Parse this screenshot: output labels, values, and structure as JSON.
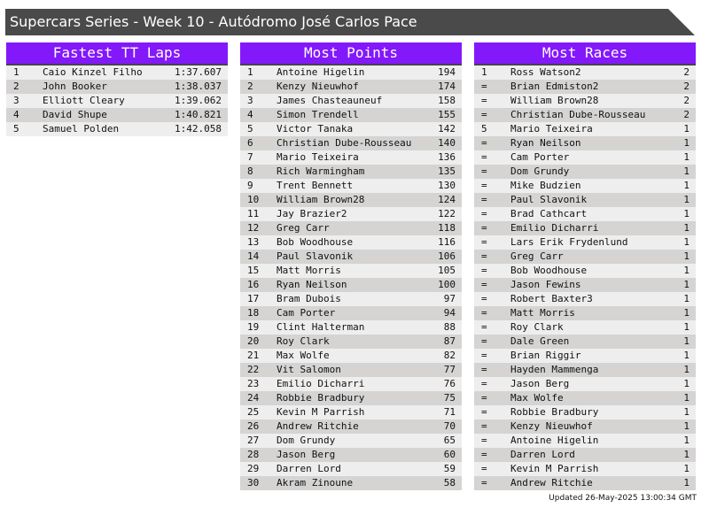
{
  "title": "Supercars Series - Week 10 - Autódromo José Carlos Pace",
  "panels": [
    {
      "heading": "Fastest TT Laps",
      "rows": [
        [
          "1",
          "Caio Kinzel Filho",
          "1:37.607"
        ],
        [
          "2",
          "John Booker",
          "1:38.037"
        ],
        [
          "3",
          "Elliott Cleary",
          "1:39.062"
        ],
        [
          "4",
          "David Shupe",
          "1:40.821"
        ],
        [
          "5",
          "Samuel Polden",
          "1:42.058"
        ]
      ]
    },
    {
      "heading": "Most Points",
      "rows": [
        [
          "1",
          "Antoine Higelin",
          "194"
        ],
        [
          "2",
          "Kenzy Nieuwhof",
          "174"
        ],
        [
          "3",
          "James Chasteauneuf",
          "158"
        ],
        [
          "4",
          "Simon Trendell",
          "155"
        ],
        [
          "5",
          "Victor Tanaka",
          "142"
        ],
        [
          "6",
          "Christian Dube-Rousseau",
          "140"
        ],
        [
          "7",
          "Mario Teixeira",
          "136"
        ],
        [
          "8",
          "Rich Warmingham",
          "135"
        ],
        [
          "9",
          "Trent Bennett",
          "130"
        ],
        [
          "10",
          "William Brown28",
          "124"
        ],
        [
          "11",
          "Jay Brazier2",
          "122"
        ],
        [
          "12",
          "Greg Carr",
          "118"
        ],
        [
          "13",
          "Bob Woodhouse",
          "116"
        ],
        [
          "14",
          "Paul Slavonik",
          "106"
        ],
        [
          "15",
          "Matt Morris",
          "105"
        ],
        [
          "16",
          "Ryan Neilson",
          "100"
        ],
        [
          "17",
          "Bram Dubois",
          "97"
        ],
        [
          "18",
          "Cam Porter",
          "94"
        ],
        [
          "19",
          "Clint Halterman",
          "88"
        ],
        [
          "20",
          "Roy Clark",
          "87"
        ],
        [
          "21",
          "Max Wolfe",
          "82"
        ],
        [
          "22",
          "Vit Salomon",
          "77"
        ],
        [
          "23",
          "Emilio Dicharri",
          "76"
        ],
        [
          "24",
          "Robbie Bradbury",
          "75"
        ],
        [
          "25",
          "Kevin M Parrish",
          "71"
        ],
        [
          "26",
          "Andrew Ritchie",
          "70"
        ],
        [
          "27",
          "Dom Grundy",
          "65"
        ],
        [
          "28",
          "Jason Berg",
          "60"
        ],
        [
          "29",
          "Darren Lord",
          "59"
        ],
        [
          "30",
          "Akram Zinoune",
          "58"
        ]
      ]
    },
    {
      "heading": "Most Races",
      "rows": [
        [
          "1",
          "Ross Watson2",
          "2"
        ],
        [
          "=",
          "Brian Edmiston2",
          "2"
        ],
        [
          "=",
          "William Brown28",
          "2"
        ],
        [
          "=",
          "Christian Dube-Rousseau",
          "2"
        ],
        [
          "5",
          "Mario Teixeira",
          "1"
        ],
        [
          "=",
          "Ryan Neilson",
          "1"
        ],
        [
          "=",
          "Cam Porter",
          "1"
        ],
        [
          "=",
          "Dom Grundy",
          "1"
        ],
        [
          "=",
          "Mike Budzien",
          "1"
        ],
        [
          "=",
          "Paul Slavonik",
          "1"
        ],
        [
          "=",
          "Brad Cathcart",
          "1"
        ],
        [
          "=",
          "Emilio Dicharri",
          "1"
        ],
        [
          "=",
          "Lars Erik Frydenlund",
          "1"
        ],
        [
          "=",
          "Greg Carr",
          "1"
        ],
        [
          "=",
          "Bob Woodhouse",
          "1"
        ],
        [
          "=",
          "Jason Fewins",
          "1"
        ],
        [
          "=",
          "Robert Baxter3",
          "1"
        ],
        [
          "=",
          "Matt Morris",
          "1"
        ],
        [
          "=",
          "Roy Clark",
          "1"
        ],
        [
          "=",
          "Dale Green",
          "1"
        ],
        [
          "=",
          "Brian Riggir",
          "1"
        ],
        [
          "=",
          "Hayden Mammenga",
          "1"
        ],
        [
          "=",
          "Jason Berg",
          "1"
        ],
        [
          "=",
          "Max Wolfe",
          "1"
        ],
        [
          "=",
          "Robbie Bradbury",
          "1"
        ],
        [
          "=",
          "Kenzy Nieuwhof",
          "1"
        ],
        [
          "=",
          "Antoine Higelin",
          "1"
        ],
        [
          "=",
          "Darren Lord",
          "1"
        ],
        [
          "=",
          "Kevin M Parrish",
          "1"
        ],
        [
          "=",
          "Andrew Ritchie",
          "1"
        ]
      ]
    }
  ],
  "updated": "Updated 26-May-2025 13:00:34 GMT",
  "colors": {
    "header": "#8318fb",
    "title_bar": "#4a4a4a",
    "row_light": "#eeeeee",
    "row_dark": "#d5d4d3"
  }
}
